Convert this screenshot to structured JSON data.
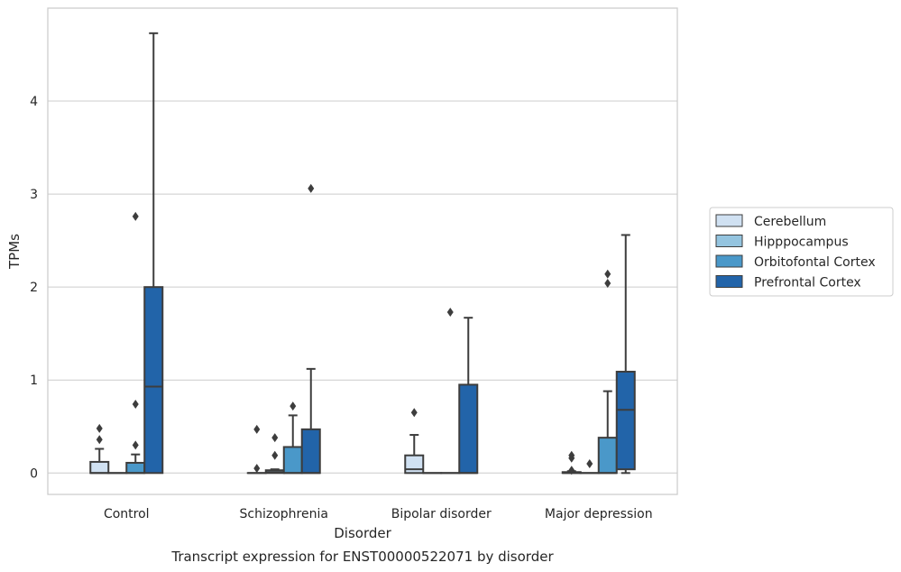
{
  "chart_data": {
    "type": "box",
    "title": "Transcript expression for ENST00000522071 by disorder",
    "xlabel": "Disorder",
    "ylabel": "TPMs",
    "categories": [
      "Control",
      "Schizophrenia",
      "Bipolar disorder",
      "Major depression"
    ],
    "ylim": [
      -0.23,
      5.0
    ],
    "yticks": [
      0,
      1,
      2,
      3,
      4
    ],
    "grid": true,
    "legend_position": "right",
    "series": [
      {
        "name": "Cerebellum",
        "color": "#d0e1f2",
        "boxes": [
          {
            "q1": 0.0,
            "median": 0.0,
            "q3": 0.12,
            "whisker_low": 0.0,
            "whisker_high": 0.26,
            "outliers": [
              0.36,
              0.48
            ]
          },
          {
            "q1": 0.0,
            "median": 0.0,
            "q3": 0.0,
            "whisker_low": 0.0,
            "whisker_high": 0.0,
            "outliers": [
              0.05,
              0.47
            ]
          },
          {
            "q1": 0.0,
            "median": 0.04,
            "q3": 0.19,
            "whisker_low": 0.0,
            "whisker_high": 0.41,
            "outliers": [
              0.65
            ]
          },
          {
            "q1": 0.0,
            "median": 0.0,
            "q3": 0.01,
            "whisker_low": 0.0,
            "whisker_high": 0.02,
            "outliers": [
              0.03,
              0.16,
              0.19
            ]
          }
        ]
      },
      {
        "name": "Hipppocampus",
        "color": "#94c4df",
        "boxes": [
          {
            "q1": 0.0,
            "median": 0.0,
            "q3": 0.0,
            "whisker_low": 0.0,
            "whisker_high": 0.0,
            "outliers": []
          },
          {
            "q1": 0.0,
            "median": 0.01,
            "q3": 0.03,
            "whisker_low": 0.0,
            "whisker_high": 0.04,
            "outliers": [
              0.19,
              0.38
            ]
          },
          {
            "q1": 0.0,
            "median": 0.0,
            "q3": 0.0,
            "whisker_low": 0.0,
            "whisker_high": 0.0,
            "outliers": []
          },
          {
            "q1": 0.0,
            "median": 0.0,
            "q3": 0.0,
            "whisker_low": 0.0,
            "whisker_high": 0.0,
            "outliers": [
              0.1
            ]
          }
        ]
      },
      {
        "name": "Orbitofontal Cortex",
        "color": "#4a98c9",
        "boxes": [
          {
            "q1": 0.0,
            "median": 0.0,
            "q3": 0.11,
            "whisker_low": 0.0,
            "whisker_high": 0.2,
            "outliers": [
              0.3,
              0.74,
              2.76
            ]
          },
          {
            "q1": 0.0,
            "median": 0.0,
            "q3": 0.28,
            "whisker_low": 0.0,
            "whisker_high": 0.62,
            "outliers": [
              0.72
            ]
          },
          {
            "q1": 0.0,
            "median": 0.0,
            "q3": 0.0,
            "whisker_low": 0.0,
            "whisker_high": 0.0,
            "outliers": [
              1.73
            ]
          },
          {
            "q1": 0.0,
            "median": 0.0,
            "q3": 0.38,
            "whisker_low": 0.0,
            "whisker_high": 0.88,
            "outliers": [
              2.04,
              2.14
            ]
          }
        ]
      },
      {
        "name": "Prefrontal Cortex",
        "color": "#2264a9",
        "boxes": [
          {
            "q1": 0.0,
            "median": 0.93,
            "q3": 2.0,
            "whisker_low": 0.0,
            "whisker_high": 4.73,
            "outliers": []
          },
          {
            "q1": 0.0,
            "median": 0.0,
            "q3": 0.47,
            "whisker_low": 0.0,
            "whisker_high": 1.12,
            "outliers": [
              3.06
            ]
          },
          {
            "q1": 0.0,
            "median": 0.0,
            "q3": 0.95,
            "whisker_low": 0.0,
            "whisker_high": 1.67,
            "outliers": []
          },
          {
            "q1": 0.04,
            "median": 0.68,
            "q3": 1.09,
            "whisker_low": 0.0,
            "whisker_high": 2.56,
            "outliers": []
          }
        ]
      }
    ]
  }
}
